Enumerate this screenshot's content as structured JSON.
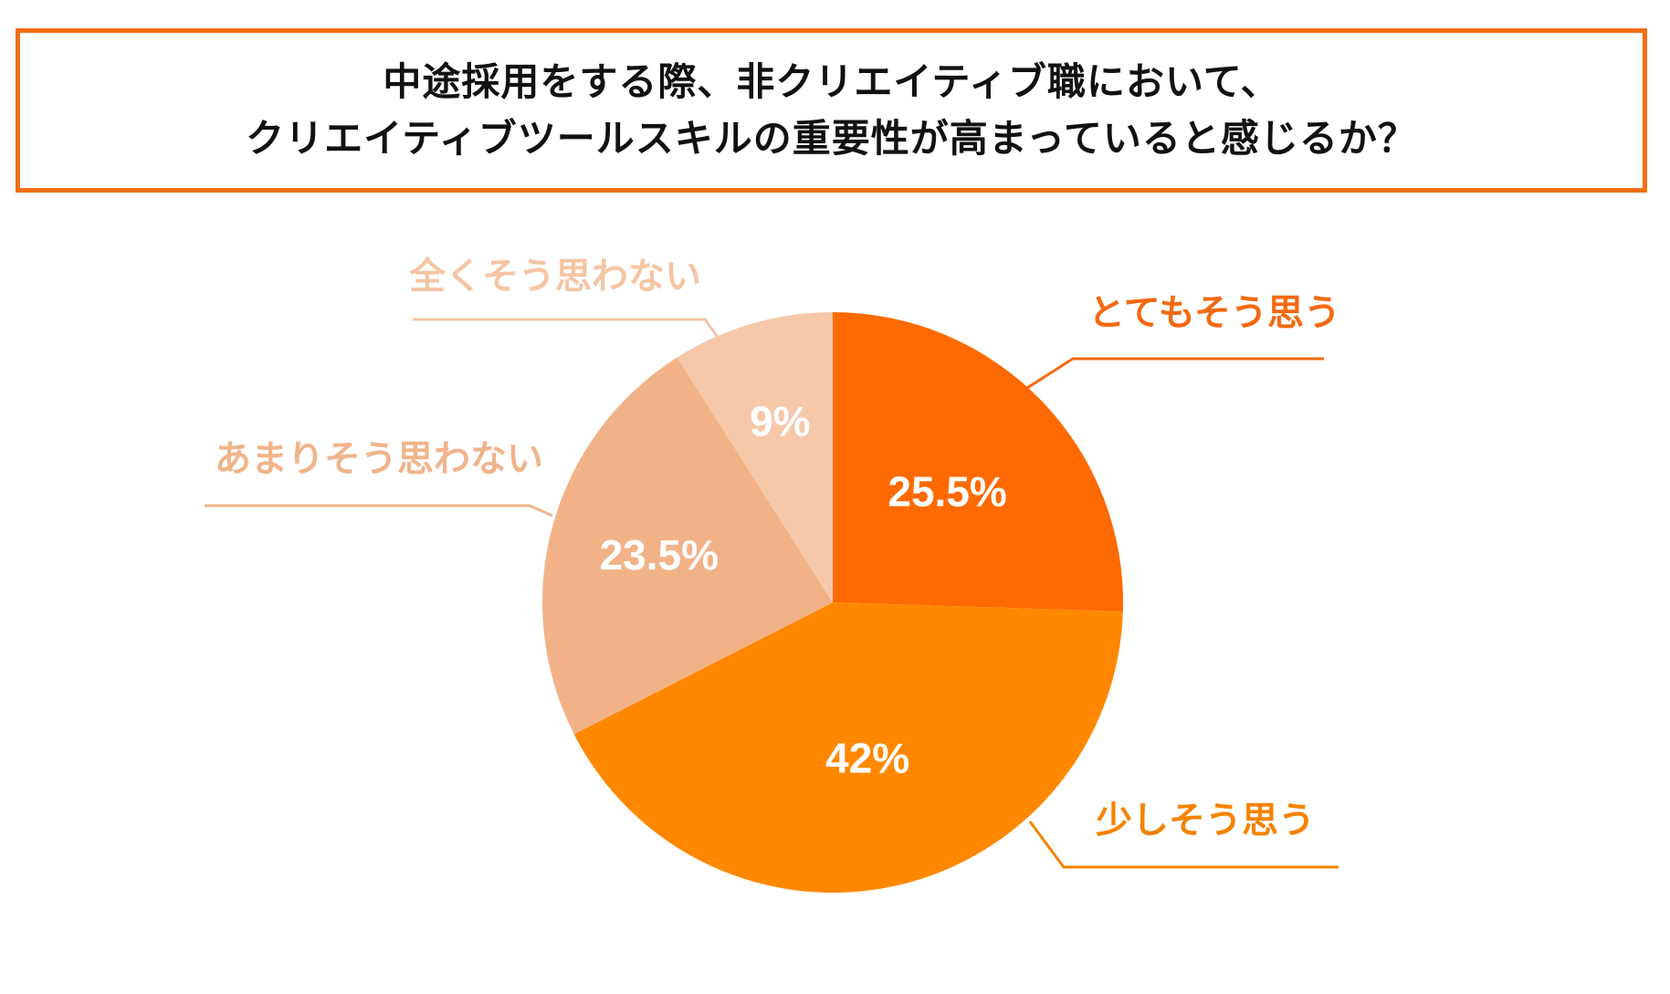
{
  "title": {
    "line1": "中途採用をする際、非クリエイティブ職において、",
    "line2": "クリエイティブツールスキルの重要性が高まっていると感じるか？"
  },
  "colors": {
    "border": "#f26f16",
    "slices": [
      "#ff6a00",
      "#ff8800",
      "#f2b288",
      "#f6c8aa"
    ],
    "labels": [
      "#f26a12",
      "#f58300",
      "#f0b48b",
      "#f5c5a5"
    ],
    "slice_text": "#ffffff"
  },
  "chart_data": {
    "type": "pie",
    "title": "中途採用をする際、非クリエイティブ職において、クリエイティブツールスキルの重要性が高まっていると感じるか？",
    "start": "top, clockwise",
    "slices": [
      {
        "name": "とてもそう思う",
        "value": 25.5,
        "label": "25.5%"
      },
      {
        "name": "少しそう思う",
        "value": 42,
        "label": "42%"
      },
      {
        "name": "あまりそう思わない",
        "value": 23.5,
        "label": "23.5%"
      },
      {
        "name": "全くそう思わない",
        "value": 9,
        "label": "9%"
      }
    ]
  }
}
